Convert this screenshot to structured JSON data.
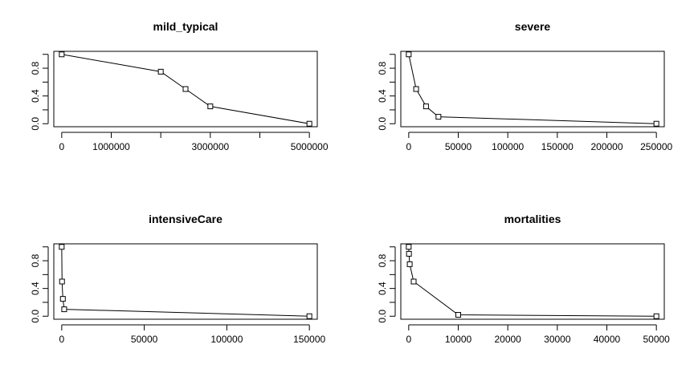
{
  "chart_data": [
    {
      "type": "line",
      "title": "mild_typical",
      "xlabel": "",
      "ylabel": "",
      "x": [
        0,
        2000000,
        2500000,
        3000000,
        5000000
      ],
      "y": [
        1.0,
        0.75,
        0.5,
        0.25,
        0.0
      ],
      "xlim": [
        0,
        5000000
      ],
      "ylim": [
        0,
        1
      ],
      "x_ticks": [
        0,
        1000000,
        2000000,
        3000000,
        4000000,
        5000000
      ],
      "x_tick_labels": [
        "0",
        "1000000",
        "",
        "3000000",
        "",
        "5000000"
      ],
      "y_ticks": [
        0,
        0.2,
        0.4,
        0.6,
        0.8,
        1.0
      ],
      "y_tick_labels": [
        "0.0",
        "",
        "0.4",
        "",
        "0.8",
        ""
      ],
      "markers": "open-square",
      "grid": false
    },
    {
      "type": "line",
      "title": "severe",
      "xlabel": "",
      "ylabel": "",
      "x": [
        0,
        7500,
        17500,
        30000,
        250000
      ],
      "y": [
        1.0,
        0.5,
        0.25,
        0.1,
        0.0
      ],
      "xlim": [
        0,
        250000
      ],
      "ylim": [
        0,
        1
      ],
      "x_ticks": [
        0,
        50000,
        100000,
        150000,
        200000,
        250000
      ],
      "x_tick_labels": [
        "0",
        "50000",
        "100000",
        "150000",
        "200000",
        "250000"
      ],
      "y_ticks": [
        0,
        0.2,
        0.4,
        0.6,
        0.8,
        1.0
      ],
      "y_tick_labels": [
        "0.0",
        "",
        "0.4",
        "",
        "0.8",
        ""
      ],
      "markers": "open-square",
      "grid": false
    },
    {
      "type": "line",
      "title": "intensiveCare",
      "xlabel": "",
      "ylabel": "",
      "x": [
        0,
        200,
        700,
        1500,
        150000
      ],
      "y": [
        1.0,
        0.5,
        0.25,
        0.1,
        0.0
      ],
      "xlim": [
        0,
        150000
      ],
      "ylim": [
        0,
        1
      ],
      "x_ticks": [
        0,
        50000,
        100000,
        150000
      ],
      "x_tick_labels": [
        "0",
        "50000",
        "100000",
        "150000"
      ],
      "y_ticks": [
        0,
        0.2,
        0.4,
        0.6,
        0.8,
        1.0
      ],
      "y_tick_labels": [
        "0.0",
        "",
        "0.4",
        "",
        "0.8",
        ""
      ],
      "markers": "open-square",
      "grid": false
    },
    {
      "type": "line",
      "title": "mortalities",
      "xlabel": "",
      "ylabel": "",
      "x": [
        0,
        50,
        200,
        1000,
        10000,
        50000
      ],
      "y": [
        1.0,
        0.9,
        0.75,
        0.5,
        0.02,
        0.0
      ],
      "xlim": [
        0,
        50000
      ],
      "ylim": [
        0,
        1
      ],
      "x_ticks": [
        0,
        10000,
        20000,
        30000,
        40000,
        50000
      ],
      "x_tick_labels": [
        "0",
        "10000",
        "20000",
        "30000",
        "40000",
        "50000"
      ],
      "y_ticks": [
        0,
        0.2,
        0.4,
        0.6,
        0.8,
        1.0
      ],
      "y_tick_labels": [
        "0.0",
        "",
        "0.4",
        "",
        "0.8",
        ""
      ],
      "markers": "open-square",
      "grid": false
    }
  ]
}
